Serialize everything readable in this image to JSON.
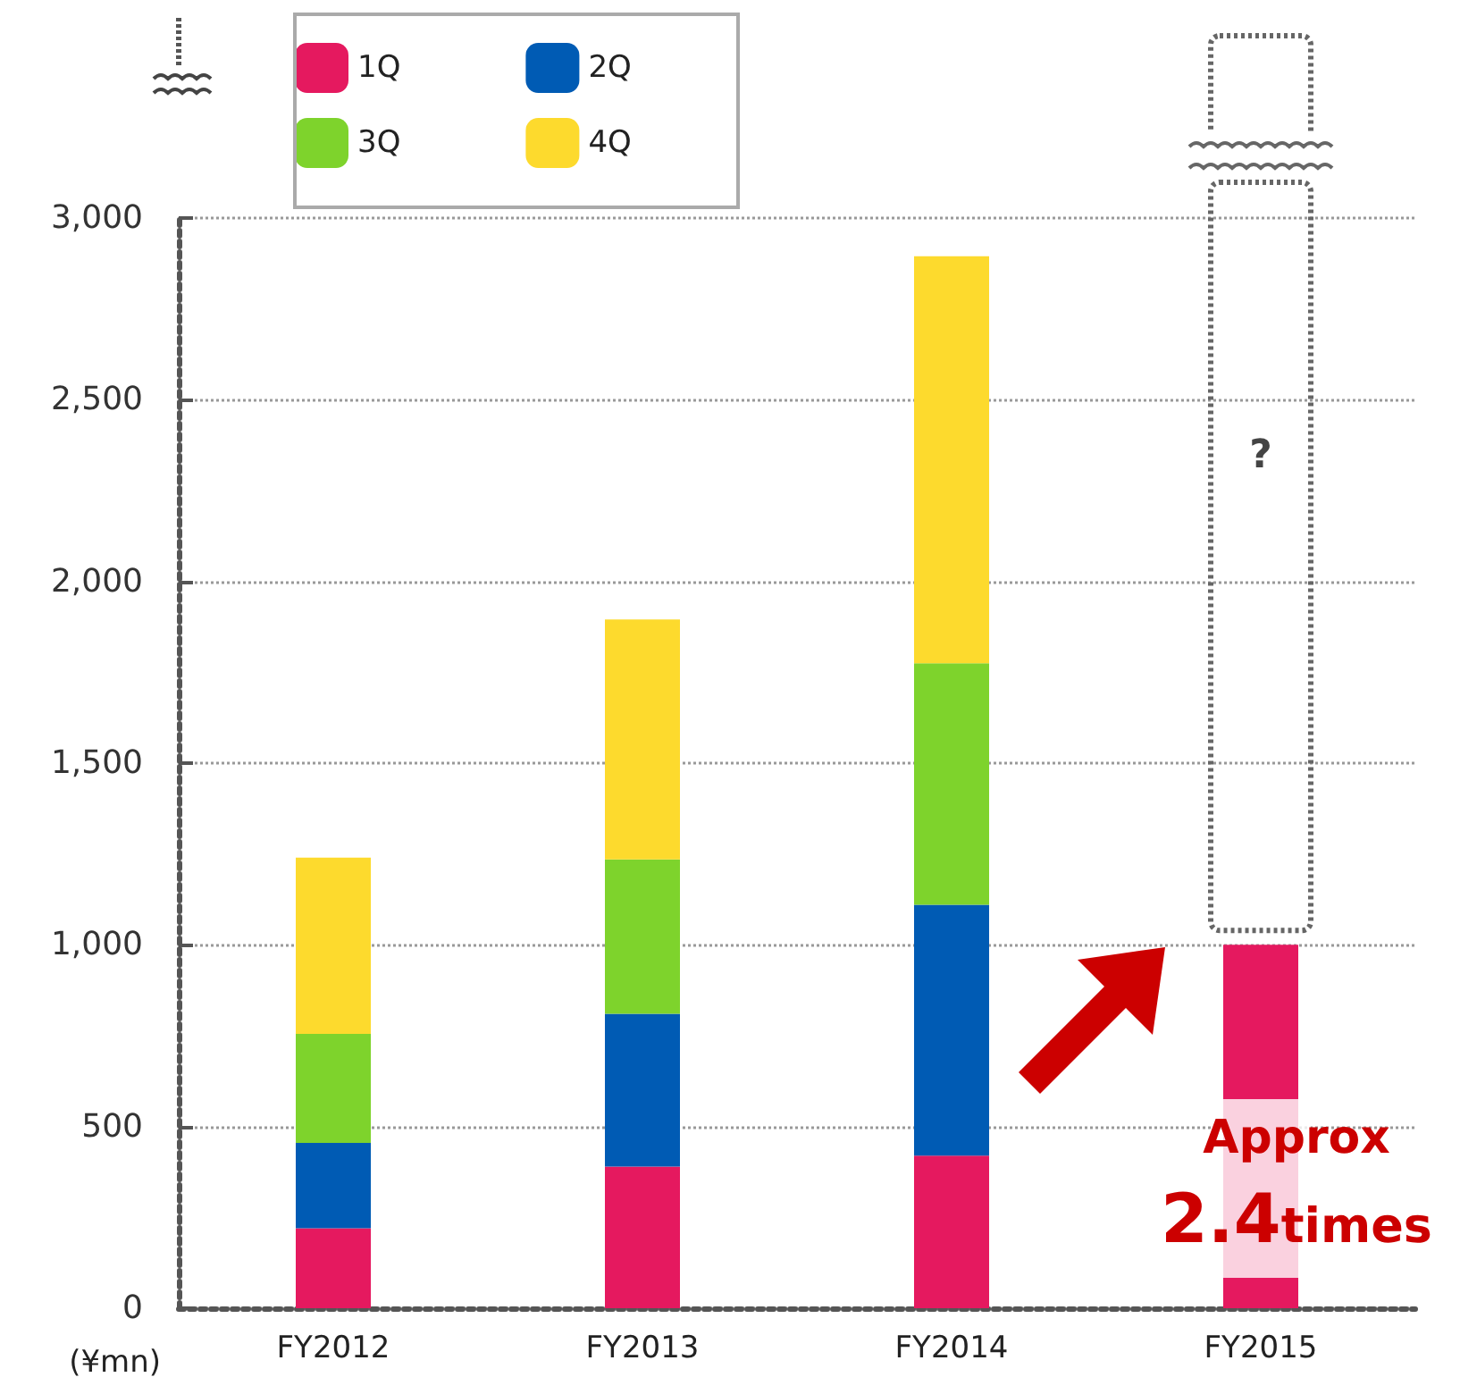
{
  "chart_data": {
    "type": "bar",
    "stacked": true,
    "ylabel": "(¥mn)",
    "categories": [
      "FY2012",
      "FY2013",
      "FY2014",
      "FY2015"
    ],
    "series": [
      {
        "name": "1Q",
        "color": "#e5195f",
        "values": [
          220,
          390,
          420,
          1000
        ]
      },
      {
        "name": "2Q",
        "color": "#005bb4",
        "values": [
          235,
          420,
          690,
          null
        ]
      },
      {
        "name": "3Q",
        "color": "#7ed32c",
        "values": [
          300,
          425,
          665,
          null
        ]
      },
      {
        "name": "4Q",
        "color": "#fdda2d",
        "values": [
          485,
          660,
          1120,
          null
        ]
      }
    ],
    "ylim": [
      0,
      3000
    ],
    "yticks": [
      0,
      {
        "value": 500,
        "label": "500"
      },
      {
        "value": 1000,
        "label": "1,000"
      },
      {
        "value": 1500,
        "label": "1,500"
      },
      {
        "value": 2000,
        "label": "2,000"
      },
      {
        "value": 2500,
        "label": "2,500"
      },
      {
        "value": 3000,
        "label": "3,000"
      }
    ],
    "grid": "y",
    "legend": "top left",
    "annotations": [
      "?",
      "Approx",
      "2.4times"
    ]
  }
}
